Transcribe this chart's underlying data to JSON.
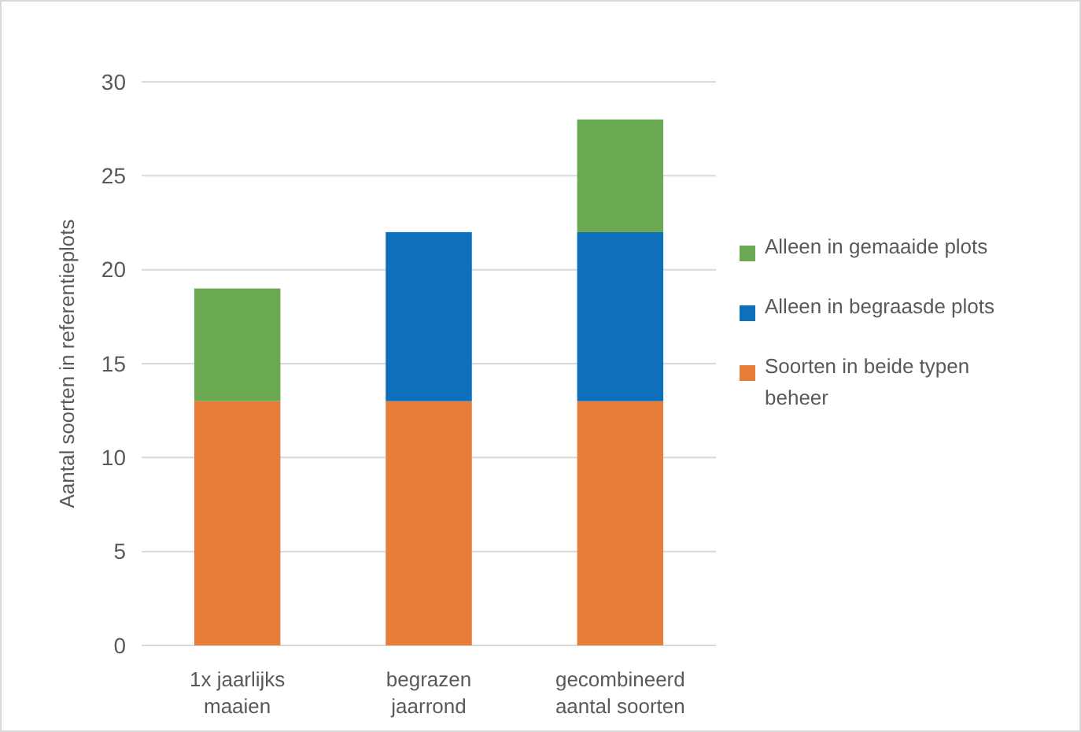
{
  "chart_data": {
    "type": "bar",
    "stacked": true,
    "ylabel": "Aantal soorten in referentieplots",
    "categories": [
      "1x jaarlijks maaien",
      "begrazen jaarrond",
      "gecombineerd aantal soorten"
    ],
    "series": [
      {
        "name": "Soorten in beide typen beheer",
        "color": "#e67e3a",
        "values": [
          13,
          13,
          13
        ]
      },
      {
        "name": "Alleen in begraasde plots",
        "color": "#0e6fbb",
        "values": [
          null,
          9,
          9
        ]
      },
      {
        "name": "Alleen in gemaaide plots",
        "color": "#6aa952",
        "values": [
          6,
          null,
          6
        ]
      }
    ],
    "ylim": [
      0,
      30
    ],
    "yticks": [
      0,
      5,
      10,
      15,
      20,
      25,
      30
    ],
    "grid": "y",
    "legend": "right"
  }
}
